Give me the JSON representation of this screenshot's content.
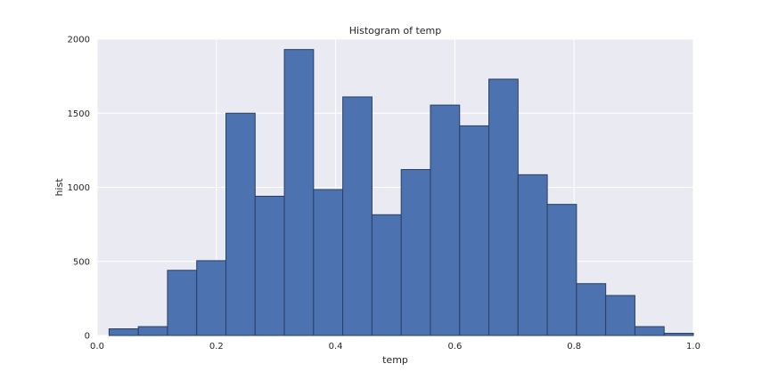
{
  "chart_data": {
    "type": "bar",
    "title": "Histogram of temp",
    "xlabel": "temp",
    "ylabel": "hist",
    "xlim": [
      0.0,
      1.0
    ],
    "ylim": [
      0,
      2000
    ],
    "x_ticks": [
      0.0,
      0.2,
      0.4,
      0.6,
      0.8,
      1.0
    ],
    "x_tick_labels": [
      "0.0",
      "0.2",
      "0.4",
      "0.6",
      "0.8",
      "1.0"
    ],
    "y_ticks": [
      0,
      500,
      1000,
      1500,
      2000
    ],
    "y_tick_labels": [
      "0",
      "500",
      "1000",
      "1500",
      "2000"
    ],
    "bin_edges": [
      0.02,
      0.069,
      0.118,
      0.167,
      0.216,
      0.265,
      0.314,
      0.363,
      0.412,
      0.461,
      0.51,
      0.559,
      0.608,
      0.657,
      0.706,
      0.755,
      0.804,
      0.853,
      0.902,
      0.951,
      1.0
    ],
    "values": [
      45,
      60,
      440,
      505,
      1500,
      940,
      1930,
      985,
      1610,
      815,
      1120,
      1555,
      1415,
      1730,
      1085,
      885,
      350,
      270,
      60,
      15
    ],
    "grid": true,
    "colors": {
      "bar_fill": "#4c72b0",
      "bar_edge": "#2a3f66",
      "plot_background": "#eaeaf2",
      "grid": "#ffffff",
      "text": "#262626"
    }
  }
}
